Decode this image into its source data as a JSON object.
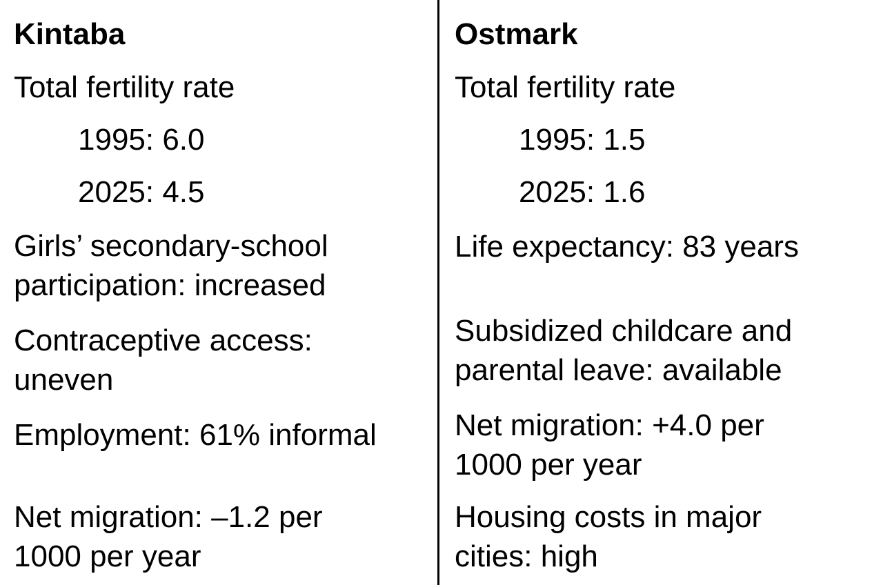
{
  "left": {
    "title": "Kintaba",
    "tfr_label": "Total fertility rate",
    "tfr_1995": "1995: 6.0",
    "tfr_2025": "2025: 4.5",
    "girls_line1": "Girls’ secondary-school",
    "girls_line2": "participation: increased",
    "contra_line1": "Contraceptive access:",
    "contra_line2": "uneven",
    "employment": "Employment: 61% informal",
    "migration_line1": "Net migration: –1.2 per",
    "migration_line2": "1000 per year"
  },
  "right": {
    "title": "Ostmark",
    "tfr_label": "Total fertility rate",
    "tfr_1995": "1995: 1.5",
    "tfr_2025": "2025: 1.6",
    "life": "Life expectancy: 83 years",
    "childcare_line1": "Subsidized childcare and",
    "childcare_line2": "parental leave: available",
    "migration_line1": "Net migration: +4.0 per",
    "migration_line2": "1000 per year",
    "housing_line1": "Housing costs in major",
    "housing_line2": "cities: high"
  }
}
